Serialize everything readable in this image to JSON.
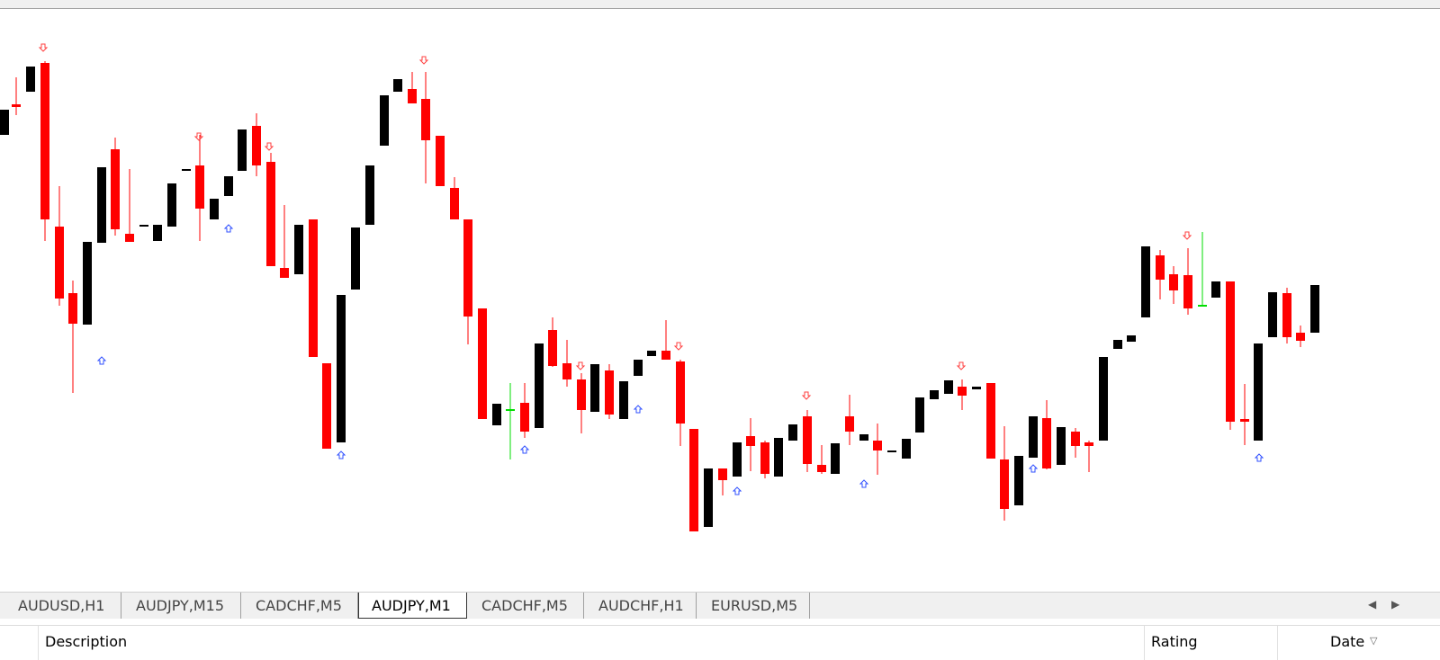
{
  "tabs": [
    "AUDUSD,H1",
    "AUDJPY,M15",
    "CADCHF,M5",
    "AUDJPY,M1",
    "CADCHF,M5",
    "AUDCHF,H1",
    "EURUSD,M5"
  ],
  "table_header": {
    "columns": [
      "Description",
      "Rating",
      "Date"
    ]
  }
}
